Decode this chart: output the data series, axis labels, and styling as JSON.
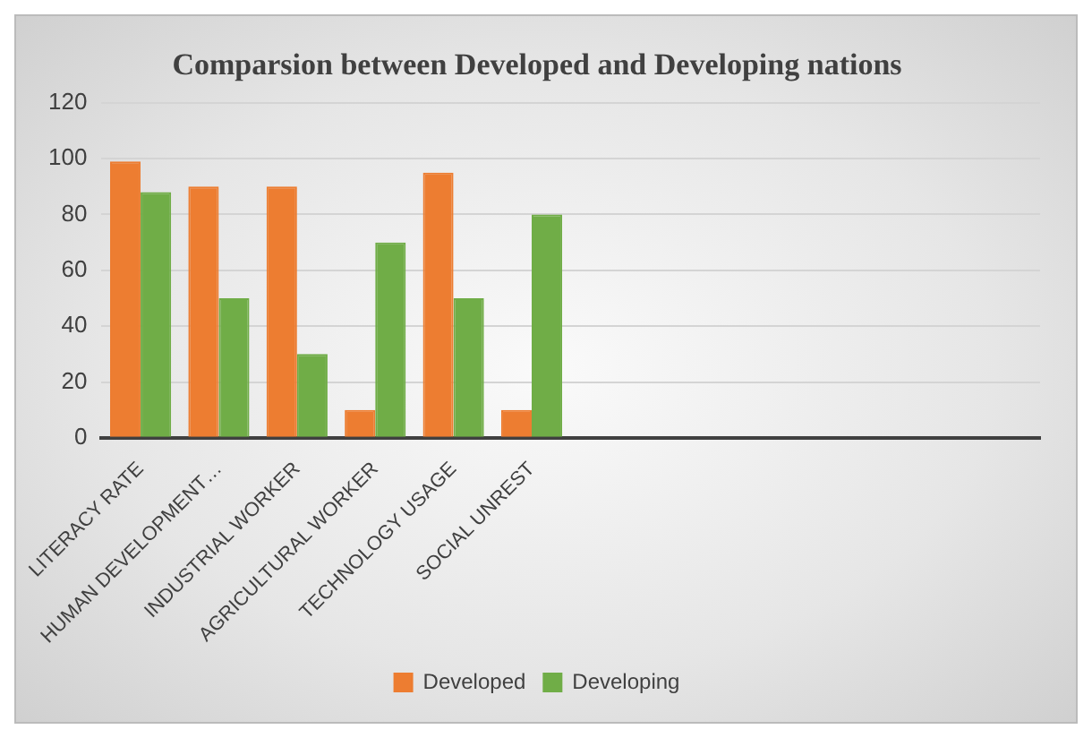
{
  "chart_data": {
    "type": "bar",
    "title": "Comparsion between Developed and Developing nations",
    "categories": [
      "LITERACY RATE",
      "HUMAN DEVELOPMENT…",
      "INDUSTRIAL WORKER",
      "AGRICULTURAL WORKER",
      "TECHNOLOGY USAGE",
      "SOCIAL UNREST",
      null,
      null,
      null,
      null,
      null,
      null
    ],
    "series": [
      {
        "name": "Developed",
        "color": "#ed7d31",
        "values": [
          99,
          90,
          90,
          10,
          95,
          10,
          null,
          null,
          null,
          null,
          null,
          null
        ]
      },
      {
        "name": "Developing",
        "color": "#70ad47",
        "values": [
          88,
          50,
          30,
          70,
          50,
          80,
          null,
          null,
          null,
          null,
          null,
          null
        ]
      }
    ],
    "ylim": [
      0,
      120
    ],
    "yticks": [
      0,
      20,
      40,
      60,
      80,
      100,
      120
    ],
    "grid": "y",
    "legend": "bottom"
  }
}
